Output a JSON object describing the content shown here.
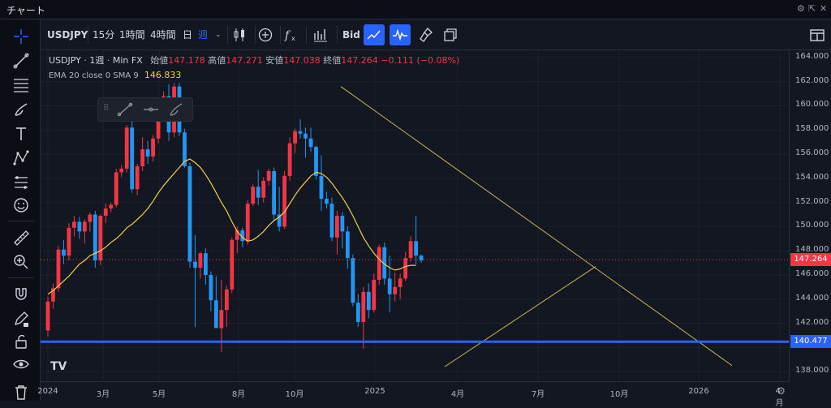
{
  "window": {
    "title": "チャート"
  },
  "toolbar": {
    "symbol": "USDJPY",
    "intervals": [
      "15分",
      "1時間",
      "4時間",
      "日",
      "週"
    ],
    "active_interval": "週",
    "price_type": "Bid"
  },
  "legend": {
    "symbol": "USDJPY",
    "interval": "1週",
    "source": "Min FX",
    "open_label": "始値",
    "open": "147.178",
    "high_label": "高値",
    "high": "147.271",
    "low_label": "安値",
    "low": "147.038",
    "close_label": "終値",
    "close": "147.264",
    "change": "−0.111 (−0.08%)",
    "indicator": "EMA 20 close 0 SMA 9",
    "indicator_value": "146.833"
  },
  "chart_data": {
    "type": "candlestick",
    "y_ticks": [
      "164.000",
      "162.000",
      "160.000",
      "158.000",
      "156.000",
      "154.000",
      "152.000",
      "150.000",
      "148.000",
      "146.000",
      "144.000",
      "142.000",
      "140.000",
      "138.000"
    ],
    "x_ticks": [
      "2024",
      "3月",
      "5月",
      "8月",
      "10月",
      "2025",
      "4月",
      "7月",
      "10月",
      "2026",
      "4月"
    ],
    "current_price": "147.264",
    "horizontal_line": "140.477",
    "ylim": [
      137.2,
      164.6
    ],
    "colors": {
      "up": "#f23645",
      "down": "#2196f3",
      "ema": "#f0d04b",
      "hline": "#2962ff",
      "trend": "#c9b458"
    }
  }
}
